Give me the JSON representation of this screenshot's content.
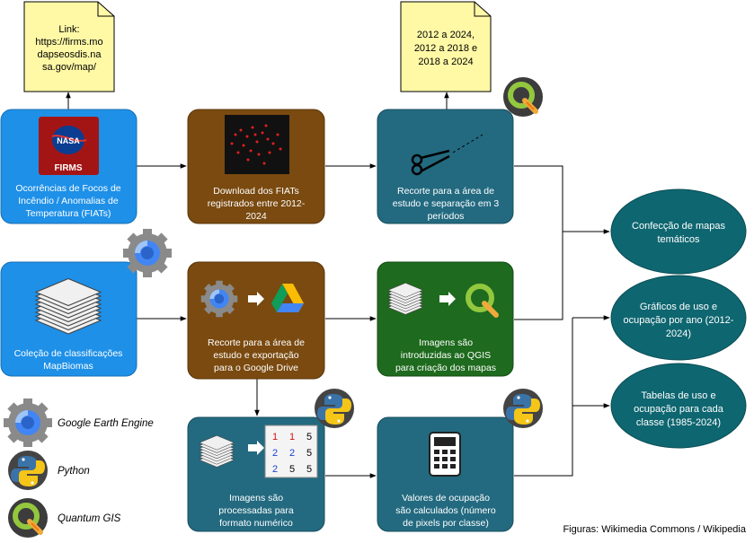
{
  "notes": {
    "link": [
      "Link:",
      "https://firms.mo",
      "dapseosdis.na",
      "sa.gov/map/"
    ],
    "periods": [
      "2012 a 2024,",
      "2012 a 2018 e",
      "2018 a 2024"
    ]
  },
  "boxes": {
    "firms": {
      "lines": [
        "Ocorrências de Focos de",
        "Incêndio / Anomalias de",
        "Temperatura (FIATs)"
      ],
      "logo_text": [
        "NASA",
        "FIRMS"
      ]
    },
    "download": {
      "lines": [
        "Download dos FIATs",
        "registrados entre 2012-",
        "2024"
      ]
    },
    "recorte_periodos": {
      "lines": [
        "Recorte para a área de",
        "estudo e separação em 3",
        "períodos"
      ]
    },
    "mapbiomas": {
      "lines": [
        "Coleção de classificações",
        "MapBiomas"
      ]
    },
    "recorte_drive": {
      "lines": [
        "Recorte para a área de",
        "estudo e exportação",
        "para o Google Drive"
      ]
    },
    "qgis_import": {
      "lines": [
        "Imagens são",
        "introduzidas ao QGIS",
        "para criação dos mapas"
      ]
    },
    "processadas": {
      "lines": [
        "Imagens são",
        "processadas para",
        "formato numérico"
      ],
      "matrix": [
        [
          "1",
          "1",
          "5"
        ],
        [
          "2",
          "2",
          "5"
        ],
        [
          "2",
          "5",
          "5"
        ]
      ]
    },
    "valores": {
      "lines": [
        "Valores de ocupação",
        "são calculados (número",
        "de pixels por classe)"
      ]
    }
  },
  "outputs": [
    {
      "lines": [
        "Confecção de mapas",
        "temáticos"
      ]
    },
    {
      "lines": [
        "Gráficos de uso e",
        "ocupação por ano (2012-",
        "2024)"
      ]
    },
    {
      "lines": [
        "Tabelas de uso e",
        "ocupação para cada",
        "classe (1985-2024)"
      ]
    }
  ],
  "legend": [
    {
      "icon": "google-earth-engine-icon",
      "label": "Google Earth Engine"
    },
    {
      "icon": "python-icon",
      "label": "Python"
    },
    {
      "icon": "qgis-icon",
      "label": "Quantum GIS"
    }
  ],
  "credit": "Figuras: Wikimedia Commons / Wikipedia",
  "colors": {
    "blue": "#1e90e8",
    "brown": "#7a4a10",
    "teal": "#236a80",
    "green": "#1e6a1e",
    "ellipse": "#0e6670",
    "note": "#fff9a6"
  }
}
